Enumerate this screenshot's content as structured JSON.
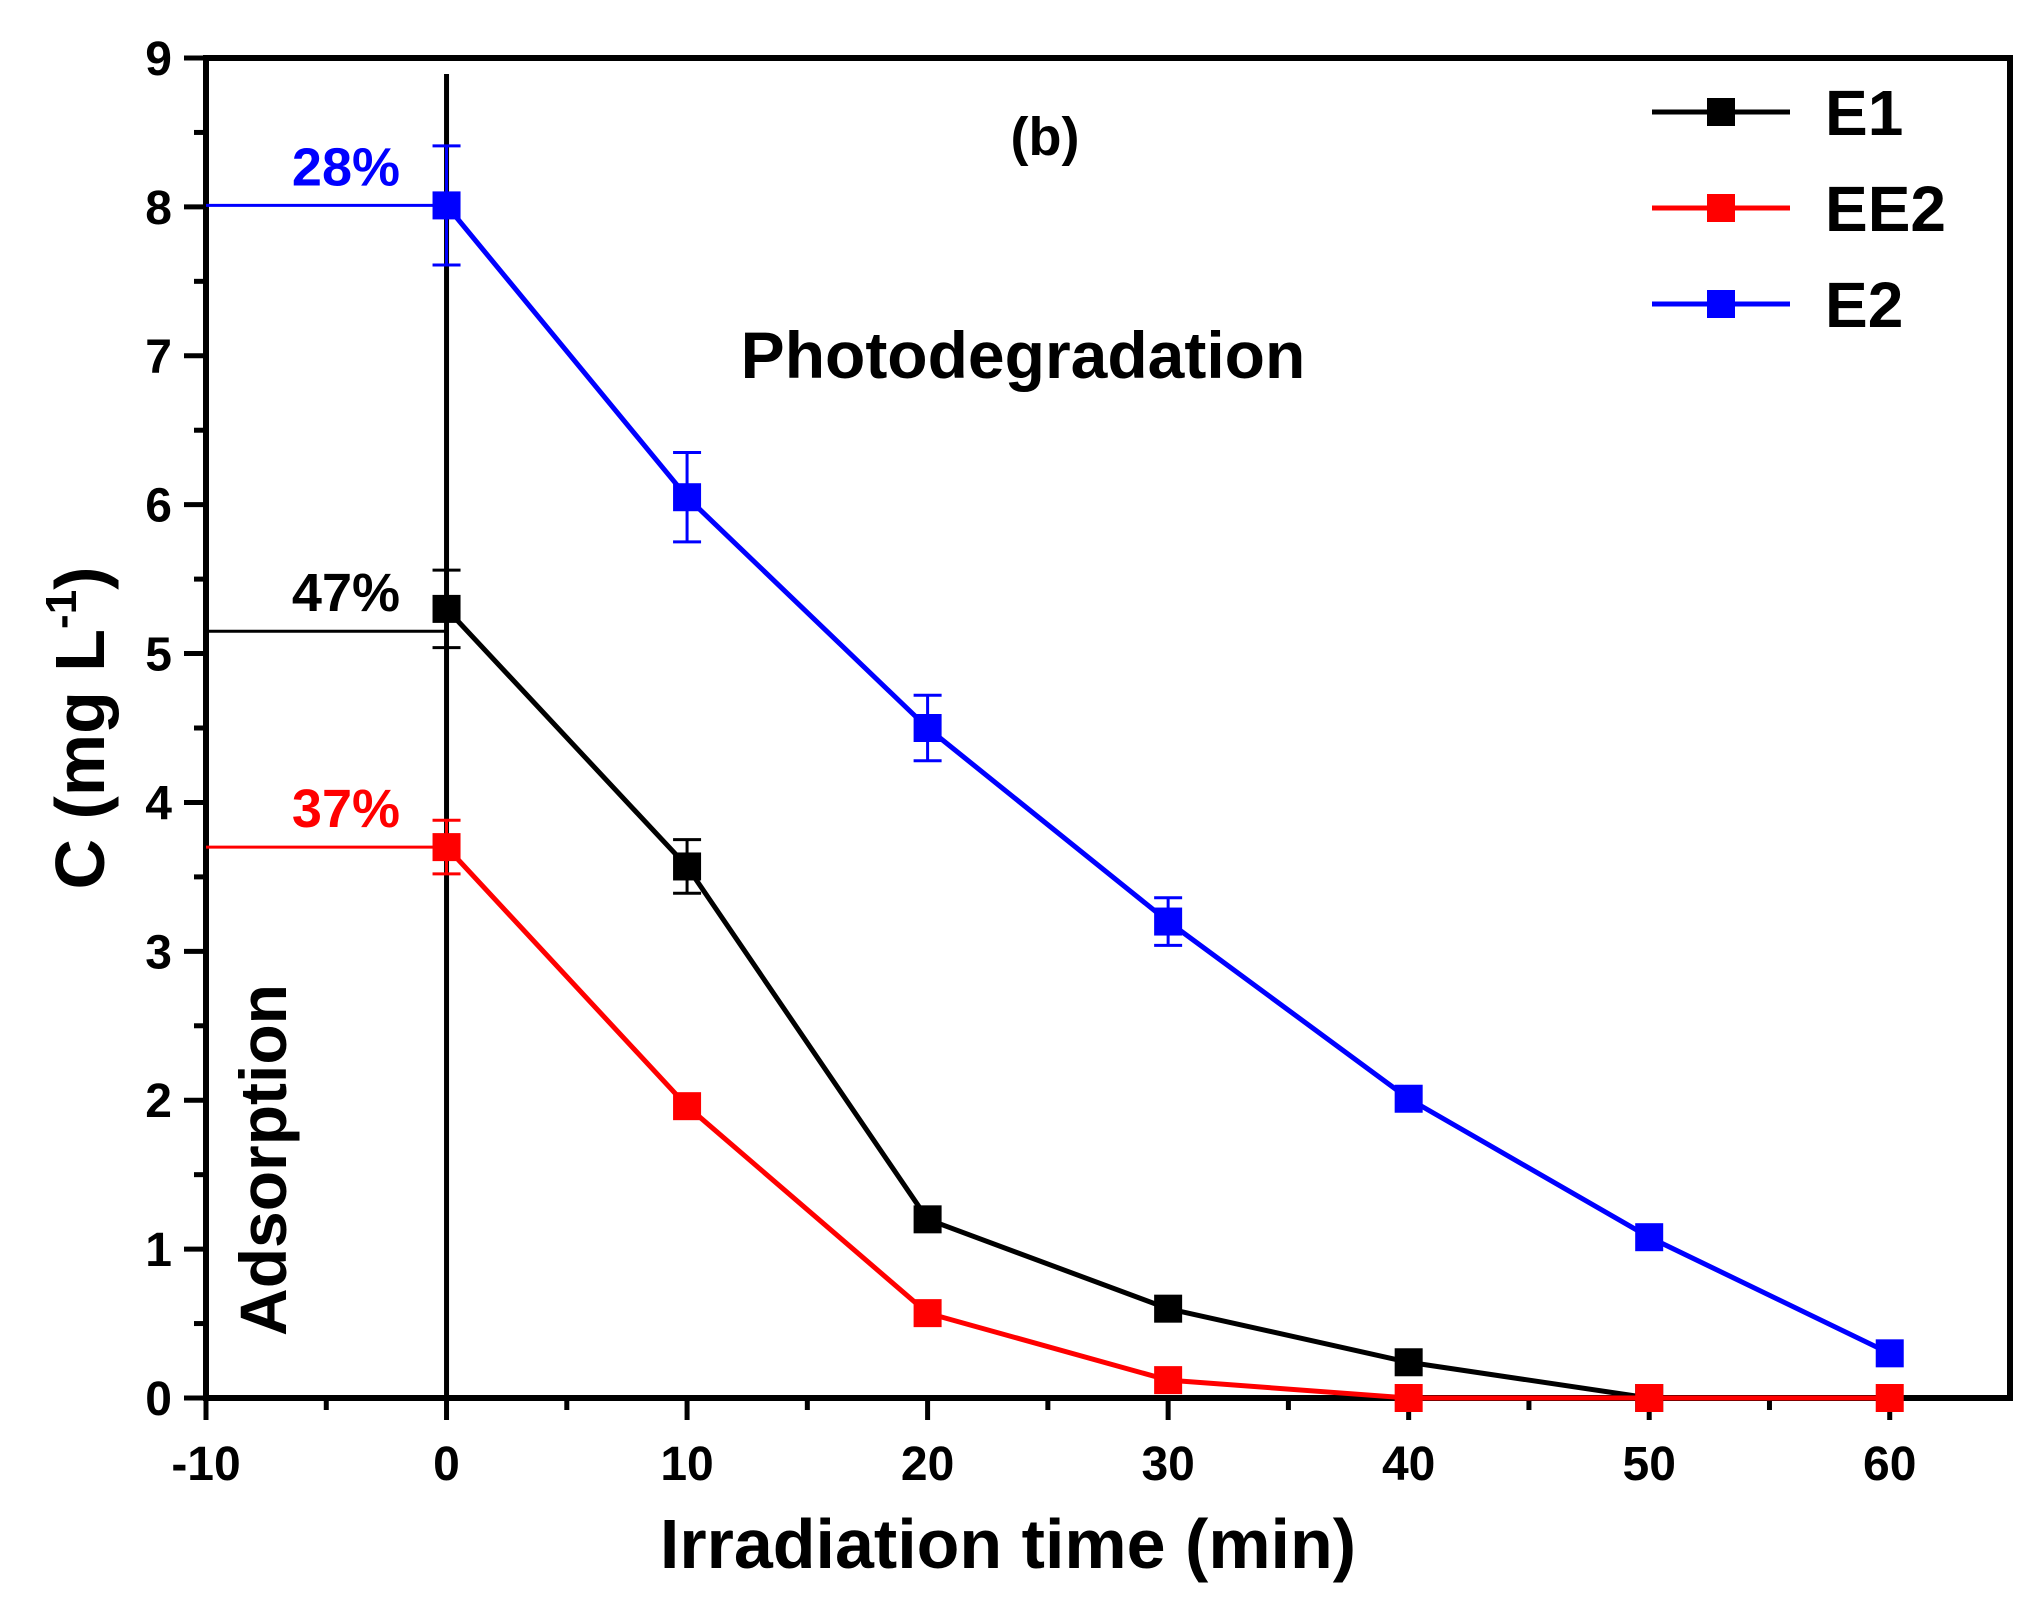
{
  "chart_data": {
    "type": "line",
    "panel_label": "(b)",
    "xlabel": "Irradiation time (min)",
    "ylabel_main": "C (mg L",
    "ylabel_sup": "-1",
    "ylabel_close": ")",
    "xlim": [
      -10,
      65
    ],
    "ylim": [
      0,
      9
    ],
    "xticks": [
      -10,
      0,
      10,
      20,
      30,
      40,
      50,
      60
    ],
    "yticks": [
      0,
      1,
      2,
      3,
      4,
      5,
      6,
      7,
      8,
      9
    ],
    "grid": false,
    "legend_position": "top-right",
    "region_labels": {
      "left": "Adsorption",
      "right": "Photodegradation"
    },
    "divider_x": 0,
    "x": [
      0,
      10,
      20,
      30,
      40,
      50,
      60
    ],
    "series": [
      {
        "name": "E1",
        "color": "#000000",
        "values": [
          5.3,
          3.57,
          1.2,
          0.6,
          0.24,
          0.0,
          null
        ],
        "errors": [
          0.26,
          0.18,
          0,
          0,
          0,
          0,
          0
        ],
        "reference_value": 5.15,
        "reference_label": "47%"
      },
      {
        "name": "EE2",
        "color": "#ff0000",
        "values": [
          3.7,
          1.96,
          0.57,
          0.12,
          0.0,
          0.0,
          0.0
        ],
        "errors": [
          0.18,
          0,
          0,
          0,
          0,
          0,
          0
        ],
        "reference_value": 3.7,
        "reference_label": "37%"
      },
      {
        "name": "E2",
        "color": "#0000ff",
        "values": [
          8.01,
          6.05,
          4.5,
          3.2,
          2.01,
          1.08,
          0.3
        ],
        "errors": [
          0.4,
          0.3,
          0.22,
          0.16,
          0,
          0,
          0
        ],
        "reference_value": 8.01,
        "reference_label": "28%"
      }
    ]
  }
}
